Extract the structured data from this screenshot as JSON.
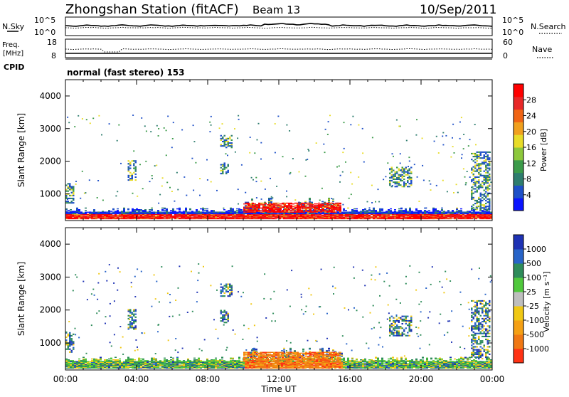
{
  "header": {
    "title": "Zhongshan Station (fitACF)",
    "beam": "Beam 13",
    "date": "10/Sep/2011"
  },
  "top_panel": {
    "left_label": "N.Sky",
    "left_ticks": [
      "10^5",
      "10^0"
    ],
    "right_ticks": [
      "10^5",
      "10^0"
    ],
    "right_label": "N.Search"
  },
  "freq_panel": {
    "left_label_1": "Freq.",
    "left_label_2": "[MHz]",
    "left_ticks": [
      "18",
      "8"
    ],
    "right_ticks": [
      "60",
      "0"
    ],
    "right_label": "Nave"
  },
  "cpid": {
    "label": "CPID",
    "mode": "normal (fast stereo) 153"
  },
  "chart_data": [
    {
      "type": "heatmap",
      "ylabel": "Slant Range [km]",
      "xlabel": "",
      "x_ticks": [
        "00:00",
        "04:00",
        "08:00",
        "12:00",
        "16:00",
        "20:00",
        "00:00"
      ],
      "y_ticks": [
        1000,
        2000,
        3000,
        4000
      ],
      "ylim": [
        180,
        4500
      ],
      "xlim": [
        0,
        24
      ],
      "colorbar": {
        "label": "Power [dB]",
        "ticks": [
          "4",
          "8",
          "12",
          "16",
          "20",
          "24",
          "28"
        ],
        "colors": [
          "#0a14ff",
          "#1e50c8",
          "#2e7d6e",
          "#3c9b4a",
          "#8dc83c",
          "#e8dc28",
          "#f0a01e",
          "#f06414",
          "#e82828",
          "#ff0000"
        ]
      },
      "bands": [
        {
          "t": [
            0,
            24
          ],
          "r": [
            230,
            420
          ],
          "level": "strong"
        },
        {
          "t": [
            10,
            15.5
          ],
          "r": [
            300,
            750
          ],
          "level": "strong"
        }
      ],
      "patches": [
        {
          "t": [
            0,
            0.5
          ],
          "r": [
            700,
            1300
          ]
        },
        {
          "t": [
            3.5,
            4.0
          ],
          "r": [
            1400,
            2000
          ]
        },
        {
          "t": [
            8.7,
            9.3
          ],
          "r": [
            2400,
            2800
          ]
        },
        {
          "t": [
            8.7,
            9.1
          ],
          "r": [
            1600,
            2000
          ]
        },
        {
          "t": [
            18.2,
            19.5
          ],
          "r": [
            1200,
            1800
          ]
        },
        {
          "t": [
            22.8,
            23.9
          ],
          "r": [
            500,
            2300
          ]
        }
      ]
    },
    {
      "type": "heatmap",
      "ylabel": "Slant Range [km]",
      "xlabel": "Time UT",
      "x_ticks": [
        "00:00",
        "04:00",
        "08:00",
        "12:00",
        "16:00",
        "20:00",
        "00:00"
      ],
      "y_ticks": [
        1000,
        2000,
        3000,
        4000
      ],
      "ylim": [
        180,
        4500
      ],
      "xlim": [
        0,
        24
      ],
      "colorbar": {
        "label": "Velocity [m s⁻¹]",
        "ticks": [
          "1000",
          "500",
          "100",
          "25",
          "-25",
          "-100",
          "-500",
          "-1000"
        ],
        "colors": [
          "#1e32b4",
          "#2864c8",
          "#2e8c5a",
          "#50c83c",
          "#bebebe",
          "#f0c814",
          "#f5a014",
          "#f07814",
          "#ff3214"
        ]
      },
      "bands": [
        {
          "t": [
            0,
            24
          ],
          "r": [
            230,
            520
          ],
          "level": "mixed"
        },
        {
          "t": [
            10,
            15.5
          ],
          "r": [
            300,
            950
          ],
          "level": "negative"
        }
      ],
      "patches": [
        {
          "t": [
            0,
            0.5
          ],
          "r": [
            700,
            1300
          ]
        },
        {
          "t": [
            3.5,
            4.0
          ],
          "r": [
            1400,
            2000
          ]
        },
        {
          "t": [
            8.7,
            9.3
          ],
          "r": [
            2400,
            2800
          ]
        },
        {
          "t": [
            8.7,
            9.1
          ],
          "r": [
            1600,
            2000
          ]
        },
        {
          "t": [
            18.2,
            19.5
          ],
          "r": [
            1200,
            1800
          ]
        },
        {
          "t": [
            22.8,
            23.9
          ],
          "r": [
            500,
            2300
          ]
        }
      ]
    }
  ]
}
